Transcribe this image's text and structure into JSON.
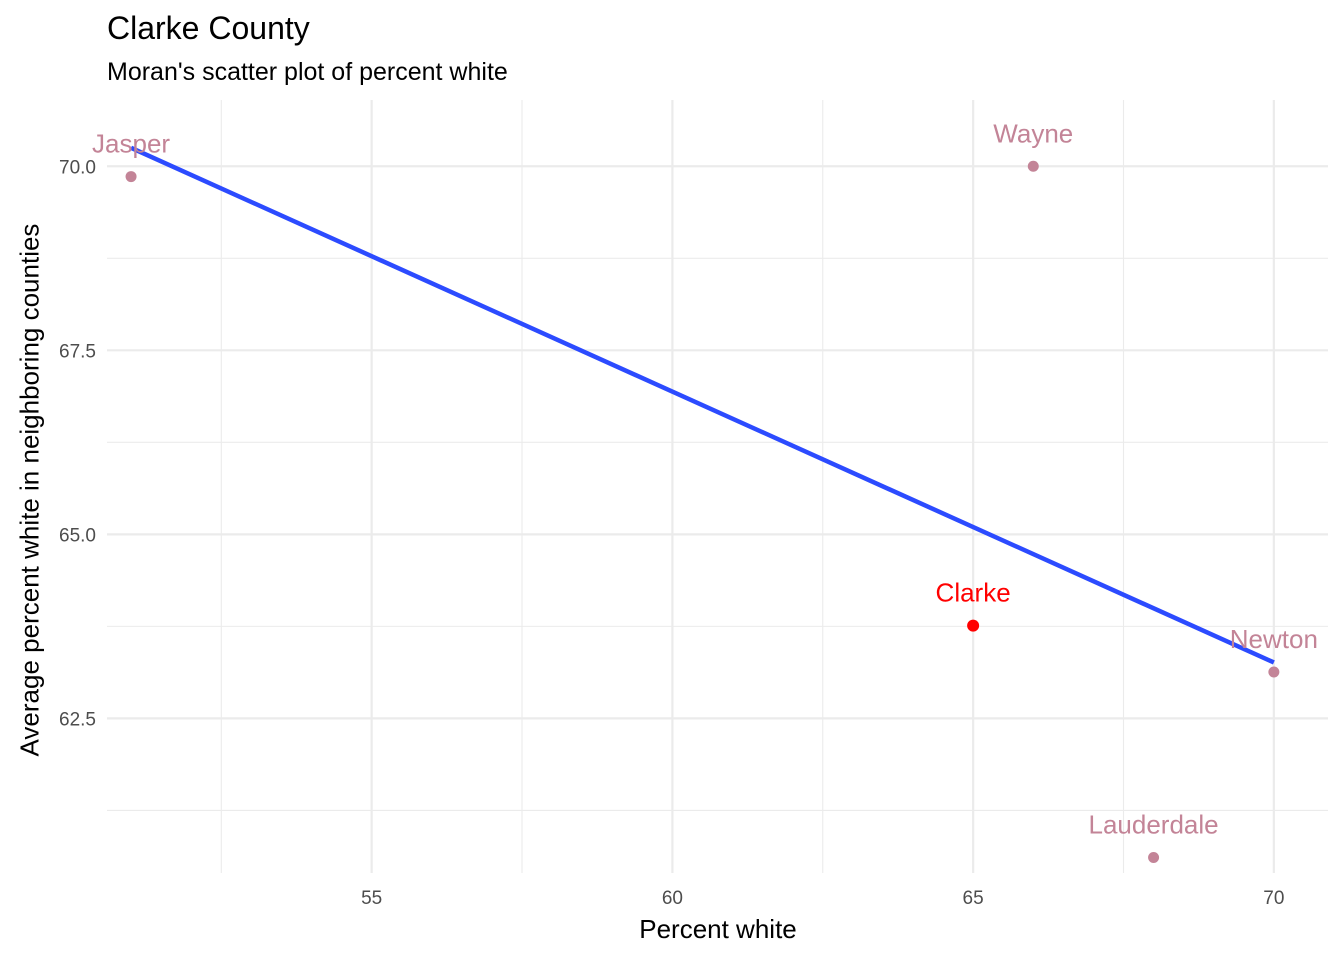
{
  "chart_data": {
    "type": "scatter",
    "title": "Clarke County",
    "subtitle": "Moran's scatter plot of percent white",
    "xlabel": "Percent white",
    "ylabel": "Average percent white in neighboring counties",
    "xlim": [
      50.6,
      70.9
    ],
    "ylim": [
      60.4,
      70.9
    ],
    "x_ticks": [
      55,
      60,
      65,
      70
    ],
    "y_ticks": [
      62.5,
      65.0,
      67.5,
      70.0
    ],
    "x_tick_labels": [
      "55",
      "60",
      "65",
      "70"
    ],
    "y_tick_labels": [
      "62.5",
      "65.0",
      "67.5",
      "70.0"
    ],
    "grid": true,
    "points": [
      {
        "label": "Jasper",
        "x": 51.0,
        "y": 69.86,
        "color": "#c38497"
      },
      {
        "label": "Wayne",
        "x": 66.0,
        "y": 70.0,
        "color": "#c38497"
      },
      {
        "label": "Clarke",
        "x": 65.0,
        "y": 63.76,
        "color": "#ff0000",
        "highlight": true
      },
      {
        "label": "Newton",
        "x": 70.0,
        "y": 63.13,
        "color": "#c38497"
      },
      {
        "label": "Lauderdale",
        "x": 68.0,
        "y": 60.61,
        "color": "#c38497"
      }
    ],
    "regression_line": {
      "color": "#2c4bff",
      "x": [
        51.0,
        70.0
      ],
      "y": [
        70.25,
        63.26
      ]
    },
    "colors": {
      "point": "#c38497",
      "highlight": "#ff0000",
      "line": "#2c4bff",
      "grid": "#ebebeb"
    }
  }
}
